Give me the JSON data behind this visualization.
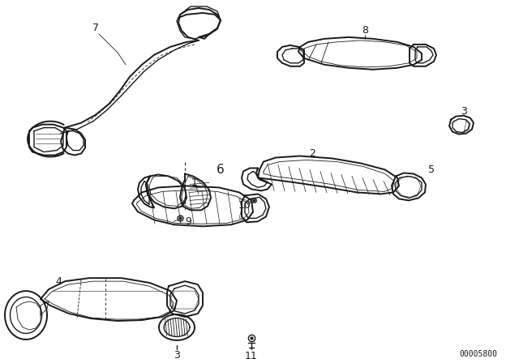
{
  "background_color": "#ffffff",
  "line_color": "#1a1a1a",
  "catalog_number": "00005800",
  "figsize": [
    6.4,
    4.48
  ],
  "dpi": 100,
  "lw": 1.0,
  "lw_thin": 0.6,
  "lw_thick": 1.4
}
